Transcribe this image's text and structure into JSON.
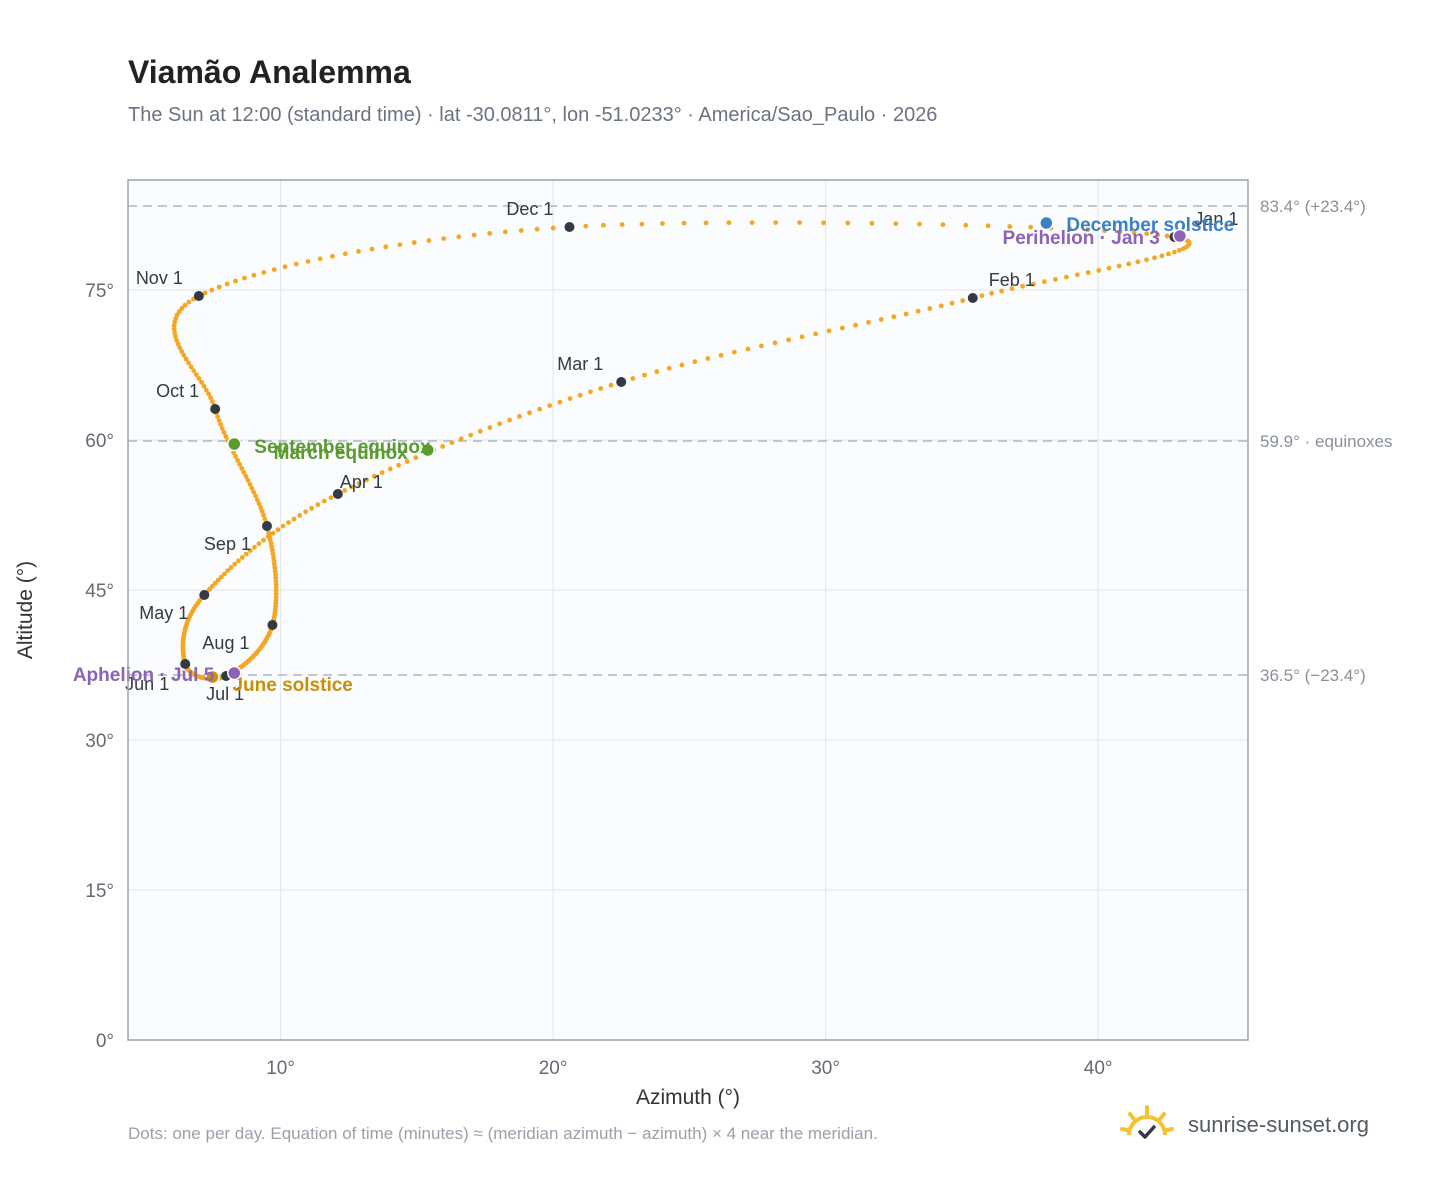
{
  "chart_data": {
    "type": "scatter",
    "title": "Viamão Analemma",
    "subtitle": "The Sun at 12:00 (standard time) · lat -30.0811°, lon -51.0233° · America/Sao_Paulo · 2026",
    "xlabel": "Azimuth (°)",
    "ylabel": "Altitude (°)",
    "xlim": [
      4.4,
      45.5
    ],
    "ylim": [
      0,
      86
    ],
    "x_ticks": [
      10,
      20,
      30,
      40
    ],
    "x_tick_labels": [
      "10°",
      "20°",
      "30°",
      "40°"
    ],
    "y_ticks": [
      0,
      15,
      30,
      45,
      60,
      75
    ],
    "y_tick_labels": [
      "0°",
      "15°",
      "30°",
      "45°",
      "60°",
      "75°"
    ],
    "grid": true,
    "colors": {
      "curve": "#f5a623",
      "month_marker": "#333a44",
      "equinox": "#5a9a2e",
      "solstice_june": "#c8900a",
      "solstice_december": "#3b7fc4",
      "apsis": "#8c63b5",
      "reference_line": "#a9b8c8",
      "plot_bg": "#fbfcfd",
      "frame": "#9aa3ad"
    },
    "curve_description": "one dot per day",
    "reference_lines": [
      {
        "y": 83.4,
        "label": "83.4° (+23.4°)"
      },
      {
        "y": 59.9,
        "label": "59.9° · equinoxes"
      },
      {
        "y": 36.5,
        "label": "36.5° (−23.4°)"
      }
    ],
    "months": [
      {
        "label": "Jan 1",
        "az": 42.8,
        "alt": 80.3
      },
      {
        "label": "Feb 1",
        "az": 35.4,
        "alt": 74.2
      },
      {
        "label": "Mar 1",
        "az": 22.5,
        "alt": 65.8
      },
      {
        "label": "Apr 1",
        "az": 12.1,
        "alt": 54.6
      },
      {
        "label": "May 1",
        "az": 7.2,
        "alt": 44.5
      },
      {
        "label": "Jun 1",
        "az": 6.5,
        "alt": 37.6
      },
      {
        "label": "Jul 1",
        "az": 8.0,
        "alt": 36.4
      },
      {
        "label": "Aug 1",
        "az": 9.7,
        "alt": 41.5
      },
      {
        "label": "Sep 1",
        "az": 9.5,
        "alt": 51.4
      },
      {
        "label": "Oct 1",
        "az": 7.6,
        "alt": 63.1
      },
      {
        "label": "Nov 1",
        "az": 7.0,
        "alt": 74.4
      },
      {
        "label": "Dec 1",
        "az": 20.6,
        "alt": 81.3
      }
    ],
    "events": [
      {
        "label": "March equinox",
        "az": 15.4,
        "alt": 59.0,
        "kind": "equinox"
      },
      {
        "label": "September equinox",
        "az": 8.3,
        "alt": 59.6,
        "kind": "equinox"
      },
      {
        "label": "June solstice",
        "az": 7.5,
        "alt": 36.3,
        "kind": "solstice_june"
      },
      {
        "label": "December solstice",
        "az": 38.1,
        "alt": 81.7,
        "kind": "solstice_december"
      },
      {
        "label": "Aphelion · Jul 5",
        "az": 8.3,
        "alt": 36.7,
        "kind": "apsis"
      },
      {
        "label": "Perihelion · Jan 3",
        "az": 43.0,
        "alt": 80.4,
        "kind": "apsis"
      }
    ],
    "footnote": "Dots: one per day. Equation of time (minutes) ≈ (meridian azimuth − azimuth) × 4 near the meridian."
  },
  "brand": {
    "text": "sunrise-sunset.org",
    "logo_icon": "sun-check-icon"
  }
}
